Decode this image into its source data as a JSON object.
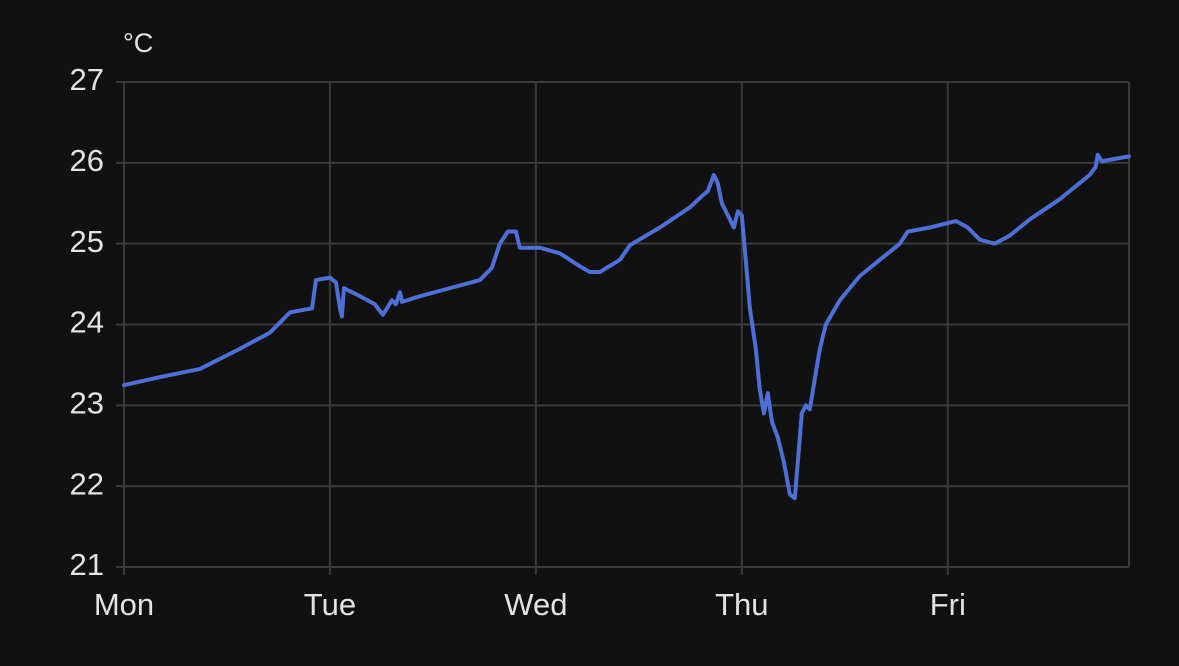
{
  "chart_data": {
    "type": "line",
    "y_label": "°C",
    "color": "#4d6fd6",
    "grid": true,
    "xlim": [
      0,
      4.88
    ],
    "xticks": [
      {
        "value": 0,
        "label": "Mon"
      },
      {
        "value": 1,
        "label": "Tue"
      },
      {
        "value": 2,
        "label": "Wed"
      },
      {
        "value": 3,
        "label": "Thu"
      },
      {
        "value": 4,
        "label": "Fri"
      }
    ],
    "ylim": [
      21,
      27
    ],
    "yticks": [
      21,
      22,
      23,
      24,
      25,
      26,
      27
    ],
    "x": [
      0,
      0.175,
      0.369,
      0.563,
      0.709,
      0.806,
      0.913,
      0.932,
      1.0,
      1.029,
      1.049,
      1.058,
      1.068,
      1.146,
      1.218,
      1.257,
      1.301,
      1.32,
      1.34,
      1.35,
      1.437,
      1.583,
      1.728,
      1.786,
      1.825,
      1.864,
      1.903,
      1.922,
      2.019,
      2.117,
      2.214,
      2.262,
      2.311,
      2.408,
      2.456,
      2.602,
      2.748,
      2.811,
      2.835,
      2.864,
      2.883,
      2.903,
      2.942,
      2.961,
      2.981,
      3.0,
      3.019,
      3.039,
      3.068,
      3.087,
      3.107,
      3.126,
      3.146,
      3.175,
      3.204,
      3.233,
      3.257,
      3.272,
      3.291,
      3.311,
      3.33,
      3.359,
      3.379,
      3.408,
      3.476,
      3.573,
      3.67,
      3.767,
      3.806,
      3.913,
      4.039,
      4.097,
      4.155,
      4.228,
      4.301,
      4.398,
      4.544,
      4.689,
      4.718,
      4.728,
      4.748,
      4.879
    ],
    "values": [
      23.25,
      23.35,
      23.45,
      23.7,
      23.9,
      24.15,
      24.2,
      24.55,
      24.58,
      24.52,
      24.2,
      24.1,
      24.45,
      24.35,
      24.25,
      24.12,
      24.3,
      24.25,
      24.4,
      24.28,
      24.35,
      24.45,
      24.55,
      24.7,
      25.0,
      25.15,
      25.15,
      24.95,
      24.95,
      24.88,
      24.72,
      24.65,
      24.65,
      24.8,
      24.98,
      25.2,
      25.45,
      25.6,
      25.65,
      25.85,
      25.75,
      25.5,
      25.3,
      25.2,
      25.4,
      25.35,
      24.8,
      24.2,
      23.7,
      23.2,
      22.9,
      23.15,
      22.8,
      22.6,
      22.3,
      21.9,
      21.85,
      22.3,
      22.9,
      23.0,
      22.95,
      23.4,
      23.7,
      24.0,
      24.3,
      24.6,
      24.8,
      25.0,
      25.15,
      25.2,
      25.28,
      25.2,
      25.05,
      25.0,
      25.1,
      25.3,
      25.55,
      25.85,
      25.95,
      26.1,
      26.02,
      26.08
    ]
  }
}
